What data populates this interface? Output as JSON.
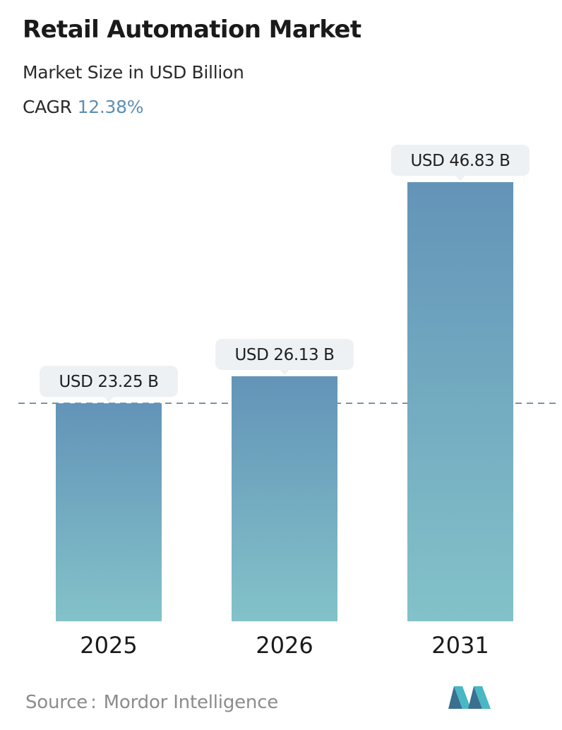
{
  "header": {
    "title": "Retail Automation Market",
    "subtitle": "Market Size in USD Billion",
    "cagr_label": "CAGR",
    "cagr_value": "12.38%"
  },
  "chart_data": {
    "type": "bar",
    "categories": [
      "2025",
      "2026",
      "2031"
    ],
    "values": [
      23.25,
      26.13,
      46.83
    ],
    "data_labels": [
      "USD 23.25 B",
      "USD 26.13 B",
      "USD 46.83 B"
    ],
    "reference_line": 23.25,
    "ylim": [
      0,
      46.83
    ],
    "grid": false,
    "colors": {
      "bar_top": "#6394b8",
      "bar_bottom": "#83c2c9",
      "reference_line": "#5b7f93",
      "label_bg": "#eef1f4"
    }
  },
  "footer": {
    "source_label": "Source",
    "separator": ":",
    "source_value": "Mordor Intelligence",
    "logo": "mordor-intelligence-logo"
  }
}
